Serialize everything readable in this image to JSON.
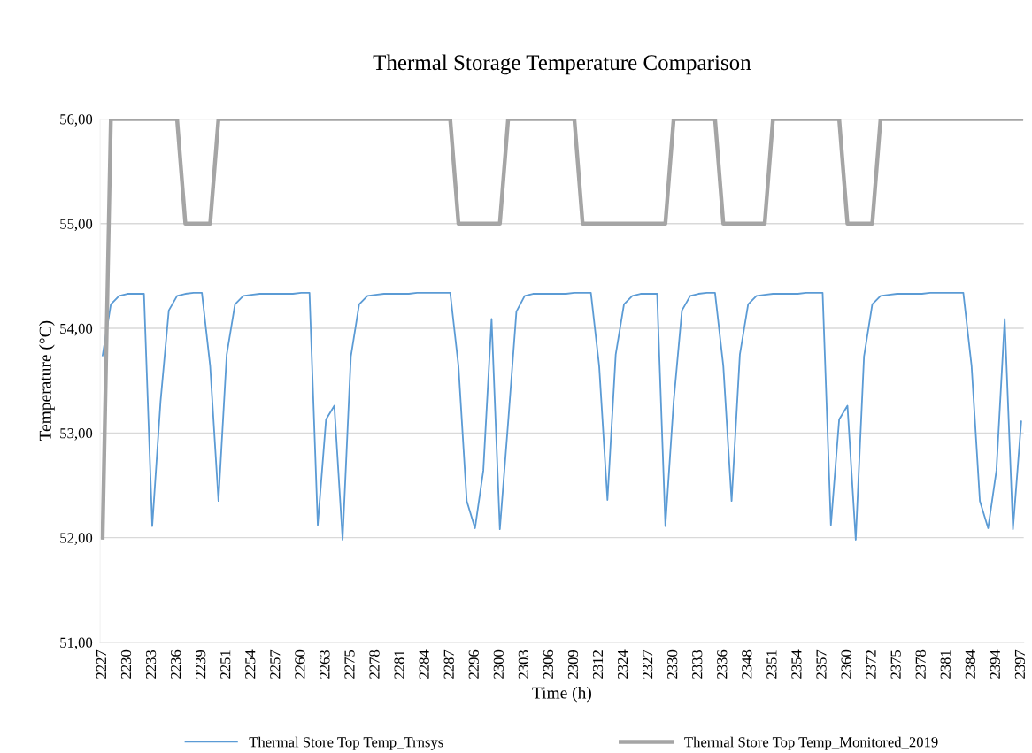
{
  "chart_data": {
    "type": "line",
    "title": "Thermal Storage Temperature Comparison",
    "xlabel": "Time (h)",
    "ylabel": "Temperature (°C)",
    "categories": [
      "2227",
      null,
      null,
      "2230",
      null,
      null,
      "2233",
      null,
      null,
      "2236",
      null,
      null,
      "2239",
      null,
      null,
      "2251",
      null,
      null,
      "2254",
      null,
      null,
      "2257",
      null,
      null,
      "2260",
      null,
      null,
      "2263",
      null,
      null,
      "2275",
      null,
      null,
      "2278",
      null,
      null,
      "2281",
      null,
      null,
      "2284",
      null,
      null,
      "2287",
      null,
      null,
      "2296",
      null,
      null,
      "2300",
      null,
      null,
      "2303",
      null,
      null,
      "2306",
      null,
      null,
      "2309",
      null,
      null,
      "2312",
      null,
      null,
      "2324",
      null,
      null,
      "2327",
      null,
      null,
      "2330",
      null,
      null,
      "2333",
      null,
      null,
      "2336",
      null,
      null,
      "2348",
      null,
      null,
      "2351",
      null,
      null,
      "2354",
      null,
      null,
      "2357",
      null,
      null,
      "2360",
      null,
      null,
      "2372",
      null,
      null,
      "2375",
      null,
      null,
      "2378",
      null,
      null,
      "2381",
      null,
      null,
      "2384",
      null,
      null,
      "2394",
      null,
      null,
      "2397"
    ],
    "series": [
      {
        "name": "Thermal Store Top Temp_Trnsys",
        "color": "#5b9bd5",
        "values": [
          53.74,
          54.23,
          54.31,
          54.33,
          54.33,
          54.33,
          52.11,
          53.3,
          54.17,
          54.31,
          54.33,
          54.34,
          54.34,
          53.64,
          52.35,
          53.75,
          54.23,
          54.31,
          54.32,
          54.33,
          54.33,
          54.33,
          54.33,
          54.33,
          54.34,
          54.34,
          52.12,
          53.13,
          53.26,
          51.98,
          53.73,
          54.23,
          54.31,
          54.32,
          54.33,
          54.33,
          54.33,
          54.33,
          54.34,
          54.34,
          54.34,
          54.34,
          54.34,
          53.64,
          52.35,
          52.09,
          52.64,
          54.09,
          52.08,
          53.1,
          54.16,
          54.31,
          54.33,
          54.33,
          54.33,
          54.33,
          54.33,
          54.34,
          54.34,
          54.34,
          53.64,
          52.36,
          53.75,
          54.23,
          54.31,
          54.33,
          54.33,
          54.33,
          52.11,
          53.3,
          54.17,
          54.31,
          54.33,
          54.34,
          54.34,
          53.64,
          52.35,
          53.75,
          54.23,
          54.31,
          54.32,
          54.33,
          54.33,
          54.33,
          54.33,
          54.34,
          54.34,
          54.34,
          52.12,
          53.13,
          53.26,
          51.98,
          53.73,
          54.23,
          54.31,
          54.32,
          54.33,
          54.33,
          54.33,
          54.33,
          54.34,
          54.34,
          54.34,
          54.34,
          54.34,
          53.64,
          52.35,
          52.09,
          52.64,
          54.09,
          52.08,
          53.11
        ]
      },
      {
        "name": "Thermal Store Top Temp_Monitored_2019",
        "color": "#a5a5a5",
        "values": [
          52,
          56,
          56,
          56,
          56,
          56,
          56,
          56,
          56,
          56,
          55,
          55,
          55,
          55,
          56,
          56,
          56,
          56,
          56,
          56,
          56,
          56,
          56,
          56,
          56,
          56,
          56,
          56,
          56,
          56,
          56,
          56,
          56,
          56,
          56,
          56,
          56,
          56,
          56,
          56,
          56,
          56,
          56,
          55,
          55,
          55,
          55,
          55,
          55,
          56,
          56,
          56,
          56,
          56,
          56,
          56,
          56,
          56,
          55,
          55,
          55,
          55,
          55,
          55,
          55,
          55,
          55,
          55,
          55,
          56,
          56,
          56,
          56,
          56,
          56,
          55,
          55,
          55,
          55,
          55,
          55,
          56,
          56,
          56,
          56,
          56,
          56,
          56,
          56,
          56,
          55,
          55,
          55,
          55,
          56,
          56,
          56,
          56,
          56,
          56,
          56,
          56,
          56,
          56,
          56,
          56,
          56,
          56,
          56,
          56,
          56,
          56
        ]
      }
    ],
    "ylim": [
      51,
      56
    ],
    "yticks": [
      {
        "value": 51,
        "label": "51,00"
      },
      {
        "value": 52,
        "label": "52,00"
      },
      {
        "value": 53,
        "label": "53,00"
      },
      {
        "value": 54,
        "label": "54,00"
      },
      {
        "value": 55,
        "label": "55,00"
      },
      {
        "value": 56,
        "label": "56,00"
      }
    ],
    "grid": "y",
    "legend": "bottom",
    "marker": "none",
    "line_style": "solid"
  }
}
